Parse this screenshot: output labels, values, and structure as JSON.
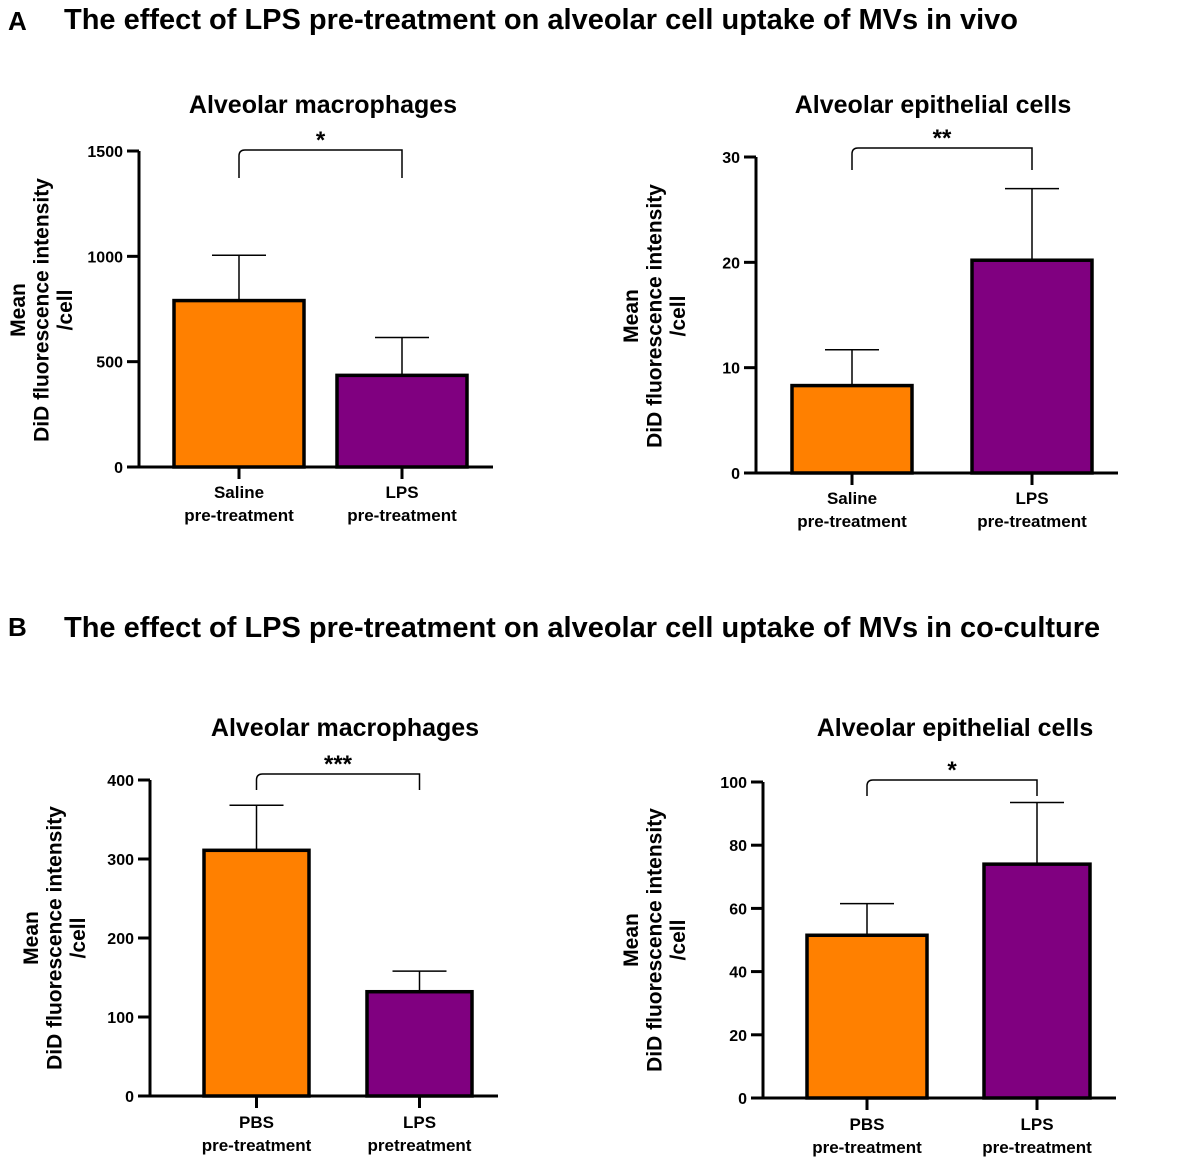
{
  "panels": [
    {
      "letter": "A",
      "title": "The effect of LPS pre-treatment on alveolar cell uptake of MVs in vivo"
    },
    {
      "letter": "B",
      "title": "The effect of LPS pre-treatment on alveolar cell uptake of MVs in co-culture"
    }
  ],
  "colors": {
    "saline_pbs": "#ff8000",
    "lps": "#800080",
    "outline": "#000000"
  },
  "chart_data": [
    {
      "type": "bar",
      "panel": "A",
      "title": "Alveolar macrophages",
      "ylabel": [
        "Mean",
        "DiD fluorescence intensity",
        "/cell"
      ],
      "categories": [
        [
          "Saline",
          "pre-treatment"
        ],
        [
          "LPS",
          "pre-treatment"
        ]
      ],
      "values": [
        790,
        435
      ],
      "errors": [
        215,
        180
      ],
      "ylim": [
        0,
        1500
      ],
      "yticks": [
        0,
        500,
        1000,
        1500
      ],
      "significance": "*"
    },
    {
      "type": "bar",
      "panel": "A",
      "title": "Alveolar epithelial cells",
      "ylabel": [
        "Mean",
        "DiD fluorescence intensity",
        "/cell"
      ],
      "categories": [
        [
          "Saline",
          "pre-treatment"
        ],
        [
          "LPS",
          "pre-treatment"
        ]
      ],
      "values": [
        8.3,
        20.2
      ],
      "errors": [
        3.4,
        6.8
      ],
      "ylim": [
        0,
        30
      ],
      "yticks": [
        0,
        10,
        20,
        30
      ],
      "significance": "**"
    },
    {
      "type": "bar",
      "panel": "B",
      "title": "Alveolar macrophages",
      "ylabel": [
        "Mean",
        "DiD fluorescence intensity",
        "/cell"
      ],
      "categories": [
        [
          "PBS",
          "pre-treatment"
        ],
        [
          "LPS",
          "pretreatment"
        ]
      ],
      "values": [
        311,
        132
      ],
      "errors": [
        57,
        26
      ],
      "ylim": [
        0,
        400
      ],
      "yticks": [
        0,
        100,
        200,
        300,
        400
      ],
      "significance": "***"
    },
    {
      "type": "bar",
      "panel": "B",
      "title": "Alveolar epithelial cells",
      "ylabel": [
        "Mean",
        "DiD fluorescence intensity",
        "/cell"
      ],
      "categories": [
        [
          "PBS",
          "pre-treatment"
        ],
        [
          "LPS",
          "pre-treatment"
        ]
      ],
      "values": [
        51.5,
        74
      ],
      "errors": [
        10,
        19.5
      ],
      "ylim": [
        0,
        100
      ],
      "yticks": [
        0,
        20,
        40,
        60,
        80,
        100
      ],
      "significance": "*"
    }
  ]
}
